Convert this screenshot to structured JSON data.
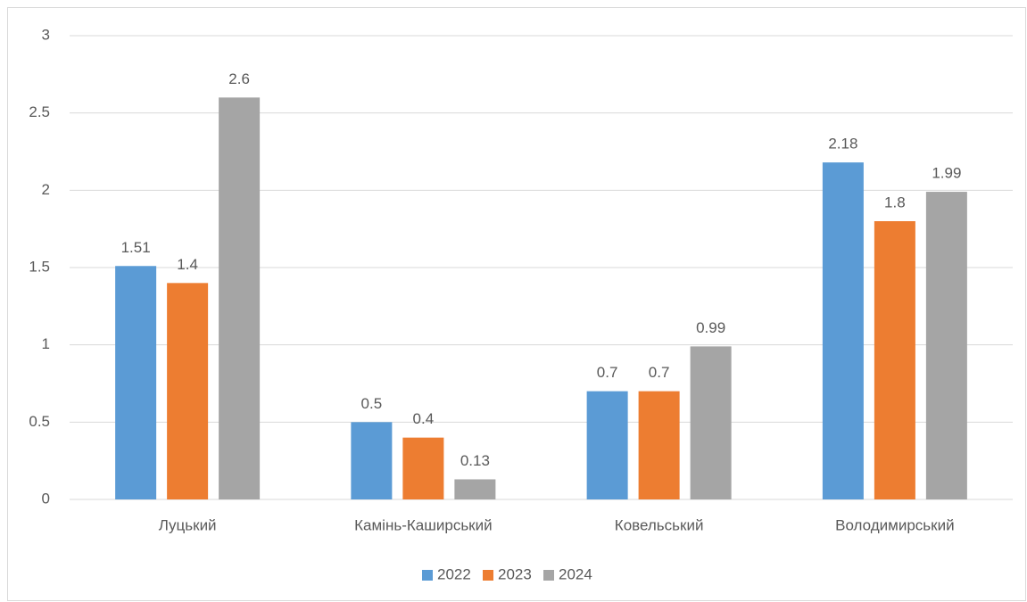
{
  "chart_data": {
    "type": "bar",
    "categories": [
      "Луцький",
      "Камінь-Каширський",
      "Ковельський",
      "Володимирський"
    ],
    "series": [
      {
        "name": "2022",
        "color": "#5b9bd5",
        "values": [
          1.51,
          0.5,
          0.7,
          2.18
        ]
      },
      {
        "name": "2023",
        "color": "#ed7d31",
        "values": [
          1.4,
          0.4,
          0.7,
          1.8
        ]
      },
      {
        "name": "2024",
        "color": "#a5a5a5",
        "values": [
          2.6,
          0.13,
          0.99,
          1.99
        ]
      }
    ],
    "ylim": [
      0,
      3
    ],
    "yticks": [
      0,
      0.5,
      1,
      1.5,
      2,
      2.5,
      3
    ],
    "grid": true,
    "legend": "bottom"
  }
}
